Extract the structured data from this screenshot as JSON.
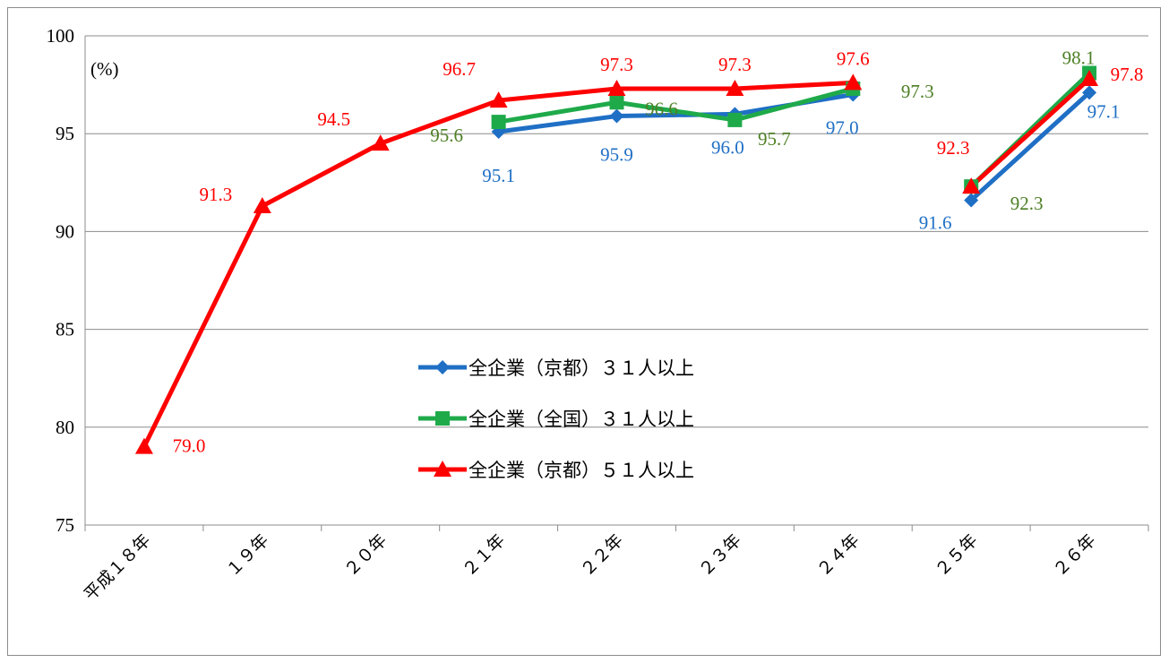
{
  "chart_data": {
    "type": "line",
    "unit_label": "(%)",
    "categories": [
      "平成１８年",
      "１９年",
      "２０年",
      "２１年",
      "２２年",
      "２３年",
      "２４年",
      "２５年",
      "２６年"
    ],
    "ylim": [
      75,
      100
    ],
    "yticks": [
      75,
      80,
      85,
      90,
      95,
      100
    ],
    "grid": true,
    "legend_position": "center",
    "series": [
      {
        "name": "全企業（京都）３１人以上",
        "color": "#1f6fc5",
        "marker": "diamond",
        "label_color": "#1f6fc5",
        "values": [
          null,
          null,
          null,
          95.1,
          95.9,
          96.0,
          97.0,
          91.6,
          97.1
        ],
        "labels": [
          null,
          null,
          null,
          "95.1",
          "95.9",
          "96.0",
          "97.0",
          "91.6",
          "97.1"
        ]
      },
      {
        "name": "全企業（全国）３１人以上",
        "color": "#1faa4a",
        "marker": "square",
        "label_color": "#4d7f24",
        "values": [
          null,
          null,
          null,
          95.6,
          96.6,
          95.7,
          97.3,
          92.3,
          98.1
        ],
        "labels": [
          null,
          null,
          null,
          "95.6",
          "96.6",
          "95.7",
          "97.3",
          "92.3",
          "98.1"
        ]
      },
      {
        "name": "全企業（京都）５１人以上",
        "color": "#ff0000",
        "marker": "triangle",
        "label_color": "#ff0000",
        "values": [
          79.0,
          91.3,
          94.5,
          96.7,
          97.3,
          97.3,
          97.6,
          92.3,
          97.8
        ],
        "labels": [
          "79.0",
          "91.3",
          "94.5",
          "96.7",
          "97.3",
          "97.3",
          "97.6",
          "92.3",
          "97.8"
        ]
      }
    ],
    "break_after_index": 6
  }
}
